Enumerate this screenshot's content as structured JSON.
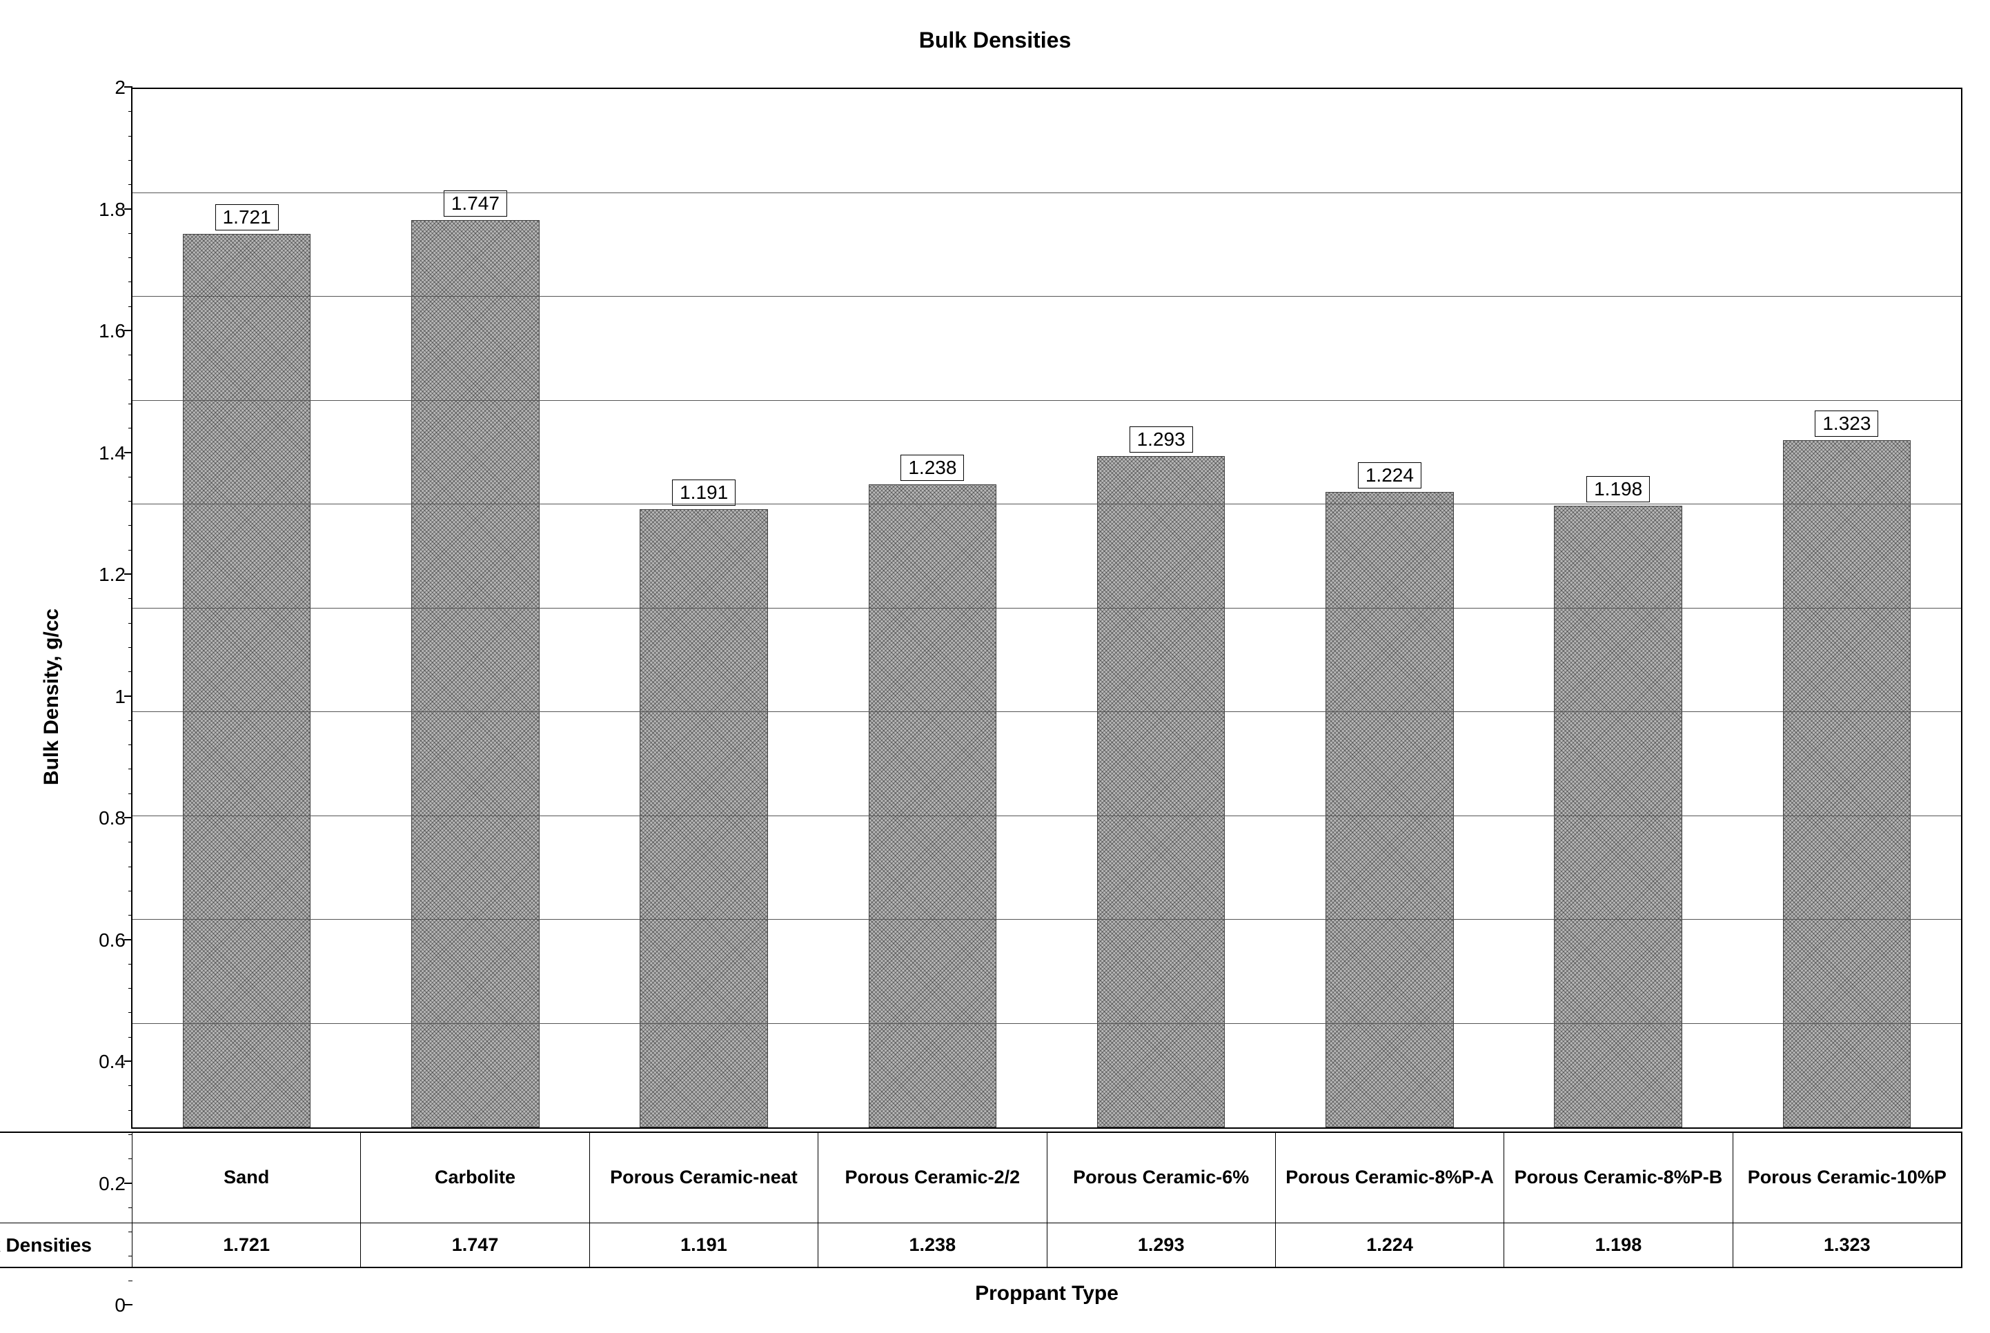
{
  "chart": {
    "type": "bar",
    "title": "Bulk Densities",
    "title_fontsize": 32,
    "ylabel": "Bulk Density, g/cc",
    "xlabel": "Proppant Type",
    "label_fontsize": 30,
    "ylim": [
      0,
      2
    ],
    "ytick_step": 0.2,
    "yminor_per_step": 5,
    "yticks": [
      "0",
      "0.2",
      "0.4",
      "0.6",
      "0.8",
      "1",
      "1.2",
      "1.4",
      "1.6",
      "1.8",
      "2"
    ],
    "background_color": "#ffffff",
    "grid_color": "#555555",
    "bar_fill_color": "#b8b8b8",
    "bar_border_color": "#404040",
    "bar_pattern": "crosshatch",
    "bar_width": 0.56,
    "plot_border_color": "#000000",
    "categories": [
      "Sand",
      "Carbolite",
      "Porous Ceramic-neat",
      "Porous Ceramic-2/2",
      "Porous Ceramic-6%",
      "Porous Ceramic-8%P-A",
      "Porous Ceramic-8%P-B",
      "Porous Ceramic-10%P"
    ],
    "values": [
      1.721,
      1.747,
      1.191,
      1.238,
      1.293,
      1.224,
      1.198,
      1.323
    ],
    "value_labels": [
      "1.721",
      "1.747",
      "1.191",
      "1.238",
      "1.293",
      "1.224",
      "1.198",
      "1.323"
    ],
    "series_name": "Bulk Densities",
    "data_label_fontsize": 28,
    "tick_fontsize": 28,
    "table_fontsize": 27
  }
}
